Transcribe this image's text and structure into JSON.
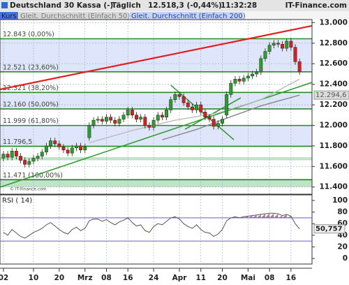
{
  "chart_data": {
    "type": "candlestick",
    "title": "Deutschland 30 Kassa (-)",
    "period": "Täglich",
    "last_price": "12.518,3 (-0,44%)",
    "time": "11:32:28",
    "source": "IT-Finance.com",
    "watermark": "© IT-Finance.com",
    "series": [
      {
        "name": "Kurs",
        "up_color": "#2aa02a",
        "down_color": "#d42020",
        "open": [
          11680,
          11720,
          11690,
          11750,
          11700,
          11660,
          11620,
          11650,
          11680,
          11700,
          11740,
          11800,
          11850,
          11820,
          11790,
          11760,
          11730,
          11780,
          11800,
          11760,
          11880,
          12000,
          12050,
          12060,
          12040,
          12080,
          12050,
          12020,
          12060,
          12100,
          12150,
          12100,
          12060,
          12080,
          12000,
          11980,
          12050,
          12100,
          12080,
          12150,
          12250,
          12300,
          12280,
          12220,
          12180,
          12150,
          12200,
          12130,
          12080,
          12060,
          11990,
          12020,
          12100,
          12300,
          12410,
          12450,
          12430,
          12460,
          12480,
          12500,
          12520,
          12650,
          12720,
          12780,
          12800,
          12790,
          12750,
          12820,
          12760,
          12620
        ],
        "high": [
          11750,
          11750,
          11780,
          11780,
          11730,
          11690,
          11680,
          11710,
          11730,
          11770,
          11830,
          11880,
          11880,
          11850,
          11820,
          11790,
          11810,
          11830,
          11830,
          11820,
          12030,
          12080,
          12090,
          12090,
          12110,
          12110,
          12080,
          12090,
          12130,
          12180,
          12180,
          12130,
          12110,
          12110,
          12030,
          12080,
          12130,
          12130,
          12180,
          12280,
          12330,
          12330,
          12310,
          12250,
          12210,
          12230,
          12230,
          12160,
          12110,
          12090,
          12050,
          12090,
          12330,
          12440,
          12480,
          12480,
          12490,
          12510,
          12530,
          12550,
          12680,
          12750,
          12810,
          12830,
          12830,
          12820,
          12843,
          12850,
          12790,
          12650
        ],
        "low": [
          11650,
          11660,
          11660,
          11670,
          11630,
          11590,
          11590,
          11620,
          11650,
          11670,
          11710,
          11770,
          11790,
          11760,
          11730,
          11700,
          11700,
          11750,
          11730,
          11730,
          11850,
          11970,
          12020,
          12010,
          12010,
          12020,
          11990,
          11990,
          12030,
          12070,
          12070,
          12030,
          12030,
          11970,
          11950,
          11950,
          12020,
          12050,
          12050,
          12120,
          12220,
          12250,
          12190,
          12150,
          12120,
          12120,
          12100,
          12050,
          12030,
          11960,
          11960,
          11990,
          12070,
          12270,
          12380,
          12400,
          12400,
          12430,
          12450,
          12470,
          12490,
          12620,
          12690,
          12750,
          12760,
          12720,
          12720,
          12730,
          12590,
          12490
        ],
        "close": [
          11720,
          11690,
          11750,
          11700,
          11660,
          11620,
          11650,
          11680,
          11700,
          11740,
          11800,
          11850,
          11820,
          11790,
          11760,
          11730,
          11780,
          11800,
          11760,
          11790,
          12000,
          12050,
          12060,
          12040,
          12080,
          12050,
          12020,
          12060,
          12100,
          12150,
          12100,
          12060,
          12080,
          12000,
          11980,
          12050,
          12100,
          12080,
          12150,
          12250,
          12300,
          12280,
          12220,
          12180,
          12150,
          12200,
          12130,
          12080,
          12060,
          11990,
          12020,
          12060,
          12300,
          12410,
          12450,
          12430,
          12460,
          12480,
          12500,
          12520,
          12650,
          12720,
          12780,
          12800,
          12790,
          12750,
          12820,
          12760,
          12620,
          12520
        ]
      },
      {
        "name": "Gleit. Durchschnitt (Einfach 50)",
        "color": "#bbbbbb",
        "x": [
          20,
          30,
          40,
          50,
          60,
          69
        ],
        "values": [
          11830,
          11950,
          12050,
          12120,
          12250,
          12450
        ]
      },
      {
        "name": "Gleit. Durchschnitt (Einfach 200)",
        "color": "#888888",
        "x": [
          37,
          45,
          52,
          60,
          69
        ],
        "values": [
          11860,
          11960,
          12070,
          12190,
          12294.6
        ],
        "last_label": "12.294,6"
      }
    ],
    "ylim": [
      11330,
      13030
    ],
    "yticks": [
      {
        "value": 11400,
        "label": "11.400"
      },
      {
        "value": 11600,
        "label": "11.600"
      },
      {
        "value": 11800,
        "label": "11.800"
      },
      {
        "value": 12000,
        "label": "12.000"
      },
      {
        "value": 12200,
        "label": "12.200"
      },
      {
        "value": 12400,
        "label": "12.400"
      },
      {
        "value": 12600,
        "label": "12.600"
      },
      {
        "value": 12800,
        "label": "12.800"
      },
      {
        "value": 13000,
        "label": "13.000"
      }
    ],
    "xlim": [
      -0.8,
      71.9
    ],
    "xticks": [
      {
        "value": 0,
        "label": "02"
      },
      {
        "value": 7,
        "label": "10"
      },
      {
        "value": 13,
        "label": "20"
      },
      {
        "value": 19,
        "label": "Mrz"
      },
      {
        "value": 24,
        "label": "08"
      },
      {
        "value": 29,
        "label": "16"
      },
      {
        "value": 35,
        "label": "24"
      },
      {
        "value": 41,
        "label": "Apr"
      },
      {
        "value": 46,
        "label": "11"
      },
      {
        "value": 51,
        "label": "20"
      },
      {
        "value": 57,
        "label": "Mai"
      },
      {
        "value": 62,
        "label": "08"
      },
      {
        "value": 67,
        "label": "16"
      }
    ],
    "grid": true,
    "fib_levels": [
      {
        "value": 12843,
        "label": "12.843 (0,00%)"
      },
      {
        "value": 12521,
        "label": "12.521 (23,60%)"
      },
      {
        "value": 12321,
        "label": "12.321 (38,20%)"
      },
      {
        "value": 12160,
        "label": "12.160 (50,00%)"
      },
      {
        "value": 11999,
        "label": "11.999 (61,80%)"
      },
      {
        "value": 11796.5,
        "label": "11.796,5"
      },
      {
        "value": 11471,
        "label": "11.471 (100,00%)"
      }
    ],
    "bands": [
      {
        "from": 12521,
        "to": 12843,
        "color": "#dfe6fb"
      },
      {
        "from": 12160,
        "to": 12321,
        "color": "#dfe6fb"
      },
      {
        "from": 11796.5,
        "to": 11999,
        "color": "#dfe6fb"
      },
      {
        "from": 11660,
        "to": 11690,
        "color": "#bfe3c6"
      },
      {
        "from": 11400,
        "to": 11480,
        "color": "#bfe3c6"
      }
    ],
    "trend_lines": [
      {
        "color": "#e02020",
        "points": [
          [
            -0.8,
            12350
          ],
          [
            71.9,
            12969
          ]
        ]
      },
      {
        "color": "#2a9a2a",
        "points": [
          [
            -0.8,
            11398
          ],
          [
            71.9,
            12418
          ]
        ]
      },
      {
        "color": "#2a9a2a",
        "points": [
          [
            39,
            12391
          ],
          [
            53.7,
            11860
          ]
        ]
      },
      {
        "color": "#2a9a2a",
        "points": [
          [
            42.3,
            11962
          ],
          [
            55.3,
            12268
          ]
        ]
      }
    ],
    "rsi": {
      "title": "RSI ( 14)",
      "color": "#555555",
      "fill_color": "#b07a9a",
      "last_label": "50,757",
      "values": [
        45,
        40,
        50,
        44,
        38,
        35,
        40,
        45,
        48,
        52,
        58,
        62,
        56,
        50,
        45,
        42,
        50,
        54,
        48,
        52,
        65,
        68,
        68,
        64,
        67,
        62,
        58,
        63,
        66,
        70,
        62,
        56,
        58,
        48,
        45,
        55,
        60,
        58,
        64,
        70,
        72,
        68,
        60,
        55,
        52,
        58,
        50,
        45,
        44,
        38,
        42,
        50,
        65,
        70,
        72,
        70,
        72,
        73,
        74,
        75,
        76,
        77,
        78,
        78,
        77,
        74,
        76,
        73,
        60,
        51
      ],
      "ylim": [
        0,
        100
      ],
      "yticks": [
        0,
        20,
        40,
        60,
        80,
        100
      ],
      "levels": [
        30,
        70
      ]
    }
  }
}
